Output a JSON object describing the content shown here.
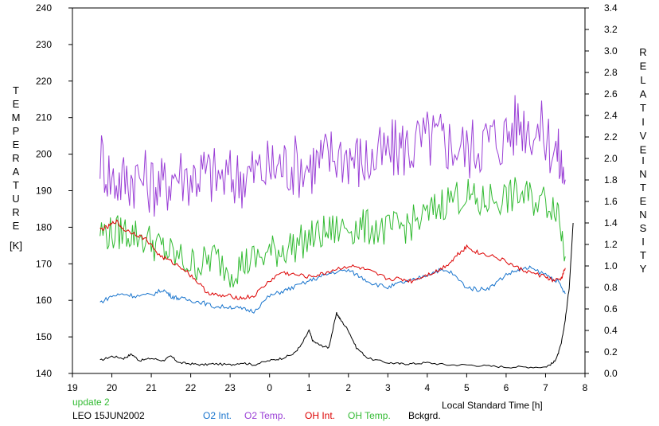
{
  "chart_data": {
    "type": "line",
    "title": "",
    "xlabel": "Local Standard Time [h]",
    "ylabel_left": "TEMPERATURE [K]",
    "ylabel_right": "RELATIVE INTENSITY",
    "ylabel_left_letters": [
      "T",
      "E",
      "M",
      "P",
      "E",
      "R",
      "A",
      "T",
      "U",
      "R",
      "E"
    ],
    "ylabel_left_unit": "[K]",
    "ylabel_right_letters1": [
      "R",
      "E",
      "L",
      "A",
      "T",
      "I",
      "V",
      "E"
    ],
    "ylabel_right_letters2": [
      "I",
      "N",
      "T",
      "E",
      "N",
      "S",
      "I",
      "T",
      "Y"
    ],
    "xlim": [
      19,
      32
    ],
    "ylim_left": [
      140,
      240
    ],
    "ylim_right": [
      0,
      3.4
    ],
    "x_ticks": [
      19,
      20,
      21,
      22,
      23,
      24,
      25,
      26,
      27,
      28,
      29,
      30,
      31,
      32
    ],
    "x_tick_labels": [
      "19",
      "20",
      "21",
      "22",
      "23",
      "0",
      "1",
      "2",
      "3",
      "4",
      "5",
      "6",
      "7",
      "8"
    ],
    "y_left_ticks": [
      140,
      150,
      160,
      170,
      180,
      190,
      200,
      210,
      220,
      230,
      240
    ],
    "y_left_tick_labels": [
      "140",
      "150",
      "160",
      "170",
      "180",
      "190",
      "200",
      "210",
      "220",
      "230",
      "240"
    ],
    "y_right_ticks": [
      0,
      0.2,
      0.4,
      0.6,
      0.8,
      1.0,
      1.2,
      1.4,
      1.6,
      1.8,
      2.0,
      2.2,
      2.4,
      2.6,
      2.8,
      3.0,
      3.2,
      3.4
    ],
    "y_right_tick_labels": [
      "0.0",
      "0.2",
      "0.4",
      "0.6",
      "0.8",
      "1.0",
      "1.2",
      "1.4",
      "1.6",
      "1.8",
      "2.0",
      "2.2",
      "2.4",
      "2.6",
      "2.8",
      "3.0",
      "3.2",
      "3.4"
    ],
    "grid": false,
    "legend_position": "bottom",
    "annotations": {
      "update": "update 2",
      "station": "LEO 15JUN2002"
    },
    "series": [
      {
        "name": "O2 Int.",
        "axis": "right",
        "color": "#1874cd",
        "x": [
          19.7,
          20.0,
          20.3,
          20.6,
          21.0,
          21.3,
          21.5,
          21.7,
          22.0,
          22.3,
          22.6,
          23.0,
          23.3,
          23.6,
          24.0,
          24.3,
          24.6,
          25.0,
          25.3,
          25.6,
          26.0,
          26.3,
          26.6,
          27.0,
          27.3,
          27.6,
          28.0,
          28.3,
          28.6,
          29.0,
          29.3,
          29.6,
          30.0,
          30.3,
          30.6,
          31.0,
          31.3,
          31.5
        ],
        "y": [
          0.66,
          0.72,
          0.74,
          0.72,
          0.73,
          0.78,
          0.72,
          0.7,
          0.68,
          0.66,
          0.62,
          0.62,
          0.6,
          0.58,
          0.72,
          0.76,
          0.8,
          0.86,
          0.9,
          0.94,
          0.96,
          0.9,
          0.84,
          0.8,
          0.84,
          0.86,
          0.92,
          0.96,
          0.94,
          0.8,
          0.78,
          0.8,
          0.92,
          0.96,
          0.98,
          0.92,
          0.86,
          0.74
        ]
      },
      {
        "name": "O2 Temp.",
        "axis": "left",
        "color": "#9a3fd6",
        "x": [
          19.7,
          20.0,
          20.3,
          20.6,
          21.0,
          21.3,
          21.6,
          22.0,
          22.3,
          22.6,
          23.0,
          23.3,
          23.6,
          24.0,
          24.3,
          24.6,
          25.0,
          25.3,
          25.6,
          26.0,
          26.3,
          26.6,
          27.0,
          27.3,
          27.6,
          28.0,
          28.3,
          28.6,
          29.0,
          29.3,
          29.6,
          30.0,
          30.3,
          30.6,
          31.0,
          31.3,
          31.5
        ],
        "y": [
          200,
          193,
          193,
          194,
          192,
          191,
          195,
          194,
          195,
          194,
          193,
          194,
          195,
          196,
          197,
          197,
          197,
          198,
          200,
          200,
          198,
          198,
          200,
          202,
          202,
          204,
          204,
          203,
          201,
          203,
          204,
          205,
          209,
          208,
          205,
          200,
          193
        ]
      },
      {
        "name": "OH Int.",
        "axis": "right",
        "color": "#dd0000",
        "x": [
          19.7,
          19.9,
          20.1,
          20.3,
          20.6,
          20.9,
          21.2,
          21.5,
          21.8,
          22.1,
          22.4,
          22.7,
          23.0,
          23.3,
          23.6,
          24.0,
          24.3,
          24.6,
          25.0,
          25.3,
          25.6,
          26.0,
          26.3,
          26.6,
          27.0,
          27.3,
          27.6,
          28.0,
          28.3,
          28.6,
          28.8,
          29.0,
          29.3,
          29.6,
          30.0,
          30.3,
          30.6,
          31.0,
          31.2,
          31.4,
          31.5
        ],
        "y": [
          1.34,
          1.36,
          1.42,
          1.34,
          1.3,
          1.24,
          1.1,
          1.04,
          0.98,
          0.88,
          0.76,
          0.72,
          0.72,
          0.7,
          0.72,
          0.86,
          0.94,
          0.92,
          0.9,
          0.92,
          0.96,
          1.0,
          0.98,
          0.94,
          0.88,
          0.88,
          0.86,
          0.92,
          0.96,
          1.04,
          1.12,
          1.18,
          1.12,
          1.1,
          1.04,
          0.98,
          0.94,
          0.9,
          0.86,
          0.88,
          0.98
        ]
      },
      {
        "name": "OH Temp.",
        "axis": "left",
        "color": "#33bb33",
        "x": [
          19.7,
          20.0,
          20.3,
          20.6,
          21.0,
          21.3,
          21.6,
          22.0,
          22.3,
          22.6,
          23.0,
          23.3,
          23.6,
          24.0,
          24.3,
          24.6,
          25.0,
          25.3,
          25.6,
          26.0,
          26.3,
          26.6,
          27.0,
          27.3,
          27.6,
          28.0,
          28.3,
          28.6,
          29.0,
          29.3,
          29.6,
          30.0,
          30.3,
          30.6,
          31.0,
          31.3,
          31.5
        ],
        "y": [
          179,
          178,
          179,
          178,
          176,
          174,
          172,
          170,
          170,
          172,
          168,
          170,
          171,
          173,
          174,
          175,
          177,
          178,
          179,
          180,
          180,
          180,
          179,
          180,
          181,
          183,
          186,
          188,
          189,
          186,
          188,
          188,
          189,
          188,
          187,
          186,
          172
        ]
      },
      {
        "name": "Bckgrd.",
        "axis": "right",
        "color": "#000000",
        "x": [
          19.7,
          20.0,
          20.3,
          20.5,
          20.7,
          21.0,
          21.3,
          21.5,
          21.7,
          22.0,
          22.3,
          22.6,
          23.0,
          23.3,
          23.6,
          24.0,
          24.3,
          24.6,
          24.8,
          25.0,
          25.1,
          25.3,
          25.5,
          25.7,
          25.8,
          26.0,
          26.2,
          26.5,
          27.0,
          27.3,
          27.6,
          28.0,
          28.5,
          29.0,
          29.5,
          30.0,
          30.5,
          31.0,
          31.2,
          31.3,
          31.4,
          31.5,
          31.6,
          31.7
        ],
        "y": [
          0.12,
          0.16,
          0.14,
          0.18,
          0.12,
          0.14,
          0.12,
          0.16,
          0.1,
          0.09,
          0.08,
          0.09,
          0.08,
          0.1,
          0.08,
          0.12,
          0.14,
          0.18,
          0.26,
          0.4,
          0.3,
          0.26,
          0.24,
          0.56,
          0.5,
          0.4,
          0.24,
          0.14,
          0.1,
          0.09,
          0.09,
          0.1,
          0.08,
          0.08,
          0.07,
          0.06,
          0.06,
          0.06,
          0.1,
          0.16,
          0.28,
          0.5,
          0.8,
          1.4
        ]
      }
    ]
  }
}
